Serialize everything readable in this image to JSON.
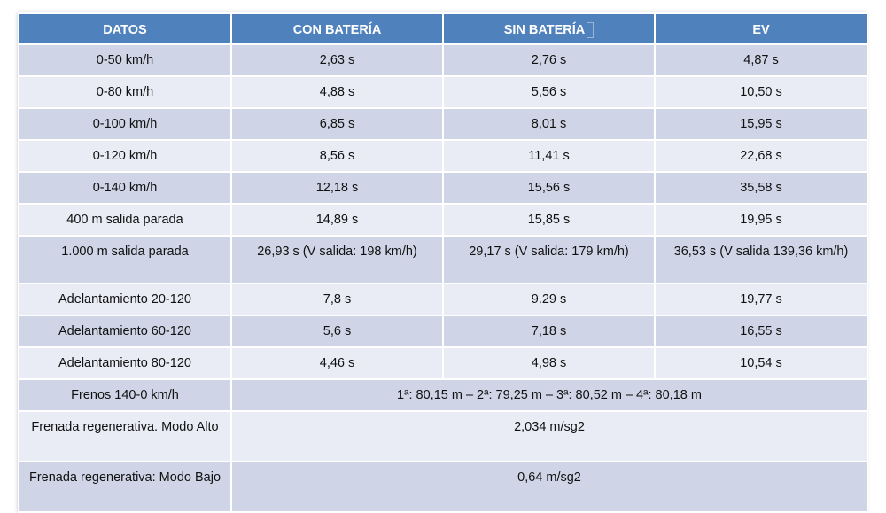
{
  "table": {
    "headers": [
      "DATOS",
      "CON BATERÍA",
      "SIN BATERÍA",
      "EV"
    ],
    "rows": [
      {
        "label": "0-50 km/h",
        "con": "2,63 s",
        "sin": "2,76 s",
        "ev": "4,87 s"
      },
      {
        "label": "0-80 km/h",
        "con": "4,88 s",
        "sin": "5,56 s",
        "ev": "10,50 s"
      },
      {
        "label": "0-100 km/h",
        "con": "6,85 s",
        "sin": "8,01 s",
        "ev": "15,95 s"
      },
      {
        "label": "0-120 km/h",
        "con": "8,56 s",
        "sin": "11,41 s",
        "ev": "22,68 s"
      },
      {
        "label": "0-140 km/h",
        "con": "12,18 s",
        "sin": "15,56 s",
        "ev": "35,58 s"
      },
      {
        "label": "400 m salida parada",
        "con": "14,89 s",
        "sin": "15,85 s",
        "ev": "19,95 s"
      },
      {
        "label": "1.000 m salida parada",
        "con": "26,93 s (V salida: 198 km/h)",
        "sin": "29,17 s (V salida: 179 km/h)",
        "ev": "36,53 s  (V salida 139,36 km/h)"
      },
      {
        "label": "Adelantamiento 20-120",
        "con": "7,8 s",
        "sin": "9.29 s",
        "ev": "19,77 s"
      },
      {
        "label": "Adelantamiento 60-120",
        "con": "5,6 s",
        "sin": "7,18 s",
        "ev": "16,55 s"
      },
      {
        "label": "Adelantamiento 80-120",
        "con": "4,46 s",
        "sin": "4,98 s",
        "ev": "10,54 s"
      }
    ],
    "span_rows": [
      {
        "label": "Frenos 140-0 km/h",
        "value": "1ª: 80,15 m – 2ª: 79,25 m – 3ª: 80,52 m – 4ª: 80,18 m"
      },
      {
        "label": "Frenada regenerativa. Modo Alto",
        "value": "2,034 m/sg2"
      },
      {
        "label": "Frenada regenerativa: Modo Bajo",
        "value": "0,64 m/sg2"
      }
    ]
  }
}
